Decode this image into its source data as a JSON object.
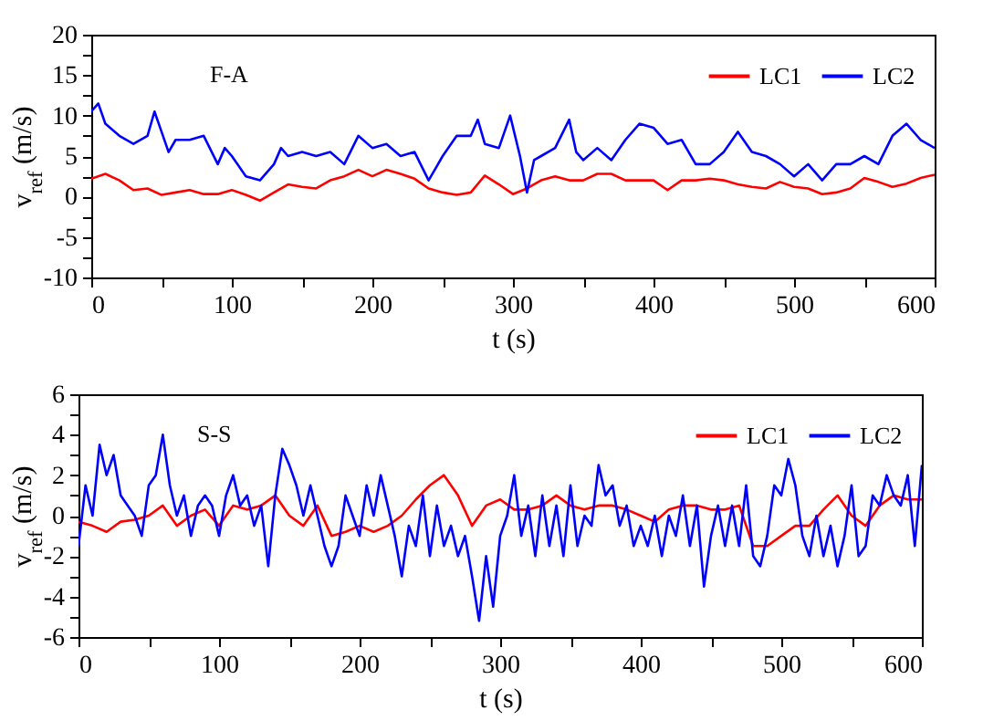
{
  "chart_data": [
    {
      "type": "line",
      "xlabel": "t (s)",
      "ylabel": "v$_{ref}$ (m/s)",
      "annotations": [
        "F-A"
      ],
      "legend": "top right",
      "xlim": [
        0,
        600
      ],
      "ylim": [
        -10,
        20
      ],
      "xticks": [
        0,
        {
          "value": 50,
          "label": null
        },
        100,
        {
          "value": 150,
          "label": null
        },
        200,
        {
          "value": 250,
          "label": null
        },
        300,
        {
          "value": 350,
          "label": null
        },
        400,
        {
          "value": 450,
          "label": null
        },
        500,
        {
          "value": 550,
          "label": null
        },
        600
      ],
      "yticks": [
        -10,
        {
          "value": -7.5,
          "label": null
        },
        -5,
        {
          "value": -2.5,
          "label": null
        },
        0,
        {
          "value": 2.5,
          "label": null
        },
        5,
        {
          "value": 7.5,
          "label": null
        },
        10,
        {
          "value": 12.5,
          "label": null
        },
        15,
        {
          "value": 17.5,
          "label": null
        },
        20
      ],
      "series": [
        {
          "name": "LC1",
          "color": "#ff0000",
          "x": [
            0,
            10,
            20,
            30,
            40,
            50,
            60,
            70,
            80,
            90,
            100,
            110,
            120,
            130,
            140,
            150,
            160,
            170,
            180,
            190,
            200,
            210,
            220,
            230,
            240,
            250,
            260,
            270,
            280,
            290,
            300,
            310,
            320,
            330,
            340,
            350,
            360,
            370,
            380,
            390,
            400,
            410,
            420,
            430,
            440,
            450,
            460,
            470,
            480,
            490,
            500,
            510,
            520,
            530,
            540,
            550,
            560,
            570,
            580,
            590,
            600
          ],
          "values": [
            2.2,
            2.8,
            2,
            0.8,
            1,
            0.2,
            0.5,
            0.8,
            0.3,
            0.3,
            0.8,
            0.2,
            -0.5,
            0.5,
            1.5,
            1.2,
            1,
            2,
            2.5,
            3.3,
            2.5,
            3.3,
            2.8,
            2.2,
            1,
            0.5,
            0.2,
            0.5,
            2.6,
            1.5,
            0.3,
            1,
            2,
            2.5,
            2,
            2,
            2.8,
            2.8,
            2,
            2,
            2,
            0.8,
            2,
            2,
            2.2,
            2,
            1.5,
            1.2,
            1,
            1.8,
            1.2,
            1,
            0.3,
            0.5,
            1,
            2.3,
            1.8,
            1.2,
            1.6,
            2.3,
            2.7
          ]
        },
        {
          "name": "LC2",
          "color": "#0000ff",
          "x": [
            0,
            5,
            10,
            20,
            30,
            40,
            45,
            50,
            55,
            60,
            70,
            80,
            90,
            95,
            100,
            110,
            120,
            130,
            135,
            140,
            150,
            160,
            170,
            180,
            190,
            200,
            210,
            220,
            230,
            240,
            245,
            250,
            260,
            270,
            275,
            280,
            290,
            298,
            305,
            310,
            315,
            320,
            330,
            340,
            345,
            350,
            360,
            370,
            380,
            390,
            400,
            410,
            420,
            430,
            440,
            450,
            460,
            470,
            480,
            490,
            500,
            510,
            520,
            530,
            540,
            550,
            560,
            570,
            580,
            590,
            600
          ],
          "values": [
            10.5,
            11.5,
            9,
            7.5,
            6.5,
            7.5,
            10.5,
            8,
            5.5,
            7,
            7,
            7.5,
            4,
            6,
            5,
            2.5,
            2,
            4,
            6,
            5,
            5.5,
            5,
            5.5,
            4,
            7.5,
            6,
            6.5,
            5,
            5.5,
            2,
            3.5,
            5,
            7.5,
            7.5,
            9.5,
            6.5,
            6,
            10,
            5,
            0.5,
            4.5,
            5,
            6,
            9.5,
            5.5,
            4.5,
            6,
            4.5,
            7,
            9,
            8.5,
            6.5,
            7,
            4,
            4,
            5.5,
            8,
            5.5,
            5,
            4,
            2.5,
            4,
            2,
            4,
            4,
            5,
            4,
            7.5,
            9,
            7,
            6
          ]
        }
      ]
    },
    {
      "type": "line",
      "xlabel": "t (s)",
      "ylabel": "v$_{ref}$ (m/s)",
      "annotations": [
        "S-S"
      ],
      "legend": "top right",
      "xlim": [
        0,
        600
      ],
      "ylim": [
        -6,
        6
      ],
      "xticks": [
        0,
        {
          "value": 50,
          "label": null
        },
        100,
        {
          "value": 150,
          "label": null
        },
        200,
        {
          "value": 250,
          "label": null
        },
        300,
        {
          "value": 350,
          "label": null
        },
        400,
        {
          "value": 450,
          "label": null
        },
        500,
        {
          "value": 550,
          "label": null
        },
        600
      ],
      "yticks": [
        -6,
        {
          "value": -5,
          "label": null
        },
        -4,
        {
          "value": -3,
          "label": null
        },
        -2,
        {
          "value": -1,
          "label": null
        },
        0,
        {
          "value": 1,
          "label": null
        },
        2,
        {
          "value": 3,
          "label": null
        },
        4,
        {
          "value": 5,
          "label": null
        },
        6
      ],
      "series": [
        {
          "name": "LC1",
          "color": "#ff0000",
          "x": [
            0,
            10,
            20,
            30,
            40,
            50,
            60,
            70,
            80,
            90,
            100,
            110,
            120,
            130,
            140,
            150,
            160,
            170,
            180,
            190,
            200,
            210,
            220,
            230,
            240,
            250,
            260,
            270,
            280,
            290,
            300,
            310,
            320,
            330,
            340,
            350,
            360,
            370,
            380,
            390,
            400,
            410,
            420,
            430,
            440,
            450,
            460,
            470,
            480,
            490,
            500,
            510,
            520,
            530,
            540,
            550,
            560,
            570,
            580,
            590,
            600
          ],
          "values": [
            -0.3,
            -0.5,
            -0.8,
            -0.3,
            -0.2,
            0,
            0.5,
            -0.5,
            0,
            0.3,
            -0.5,
            0.5,
            0.3,
            0.5,
            1,
            0,
            -0.5,
            0.5,
            -1,
            -0.8,
            -0.5,
            -0.8,
            -0.5,
            0,
            0.8,
            1.5,
            2,
            1,
            -0.5,
            0.5,
            0.8,
            0.3,
            0.3,
            0.5,
            1,
            0.5,
            0.3,
            0.5,
            0.5,
            0.3,
            0,
            -0.3,
            0.3,
            0.5,
            0.5,
            0.3,
            0.3,
            0.5,
            -1.5,
            -1.5,
            -1,
            -0.5,
            -0.5,
            0.3,
            1,
            0,
            -0.5,
            0.5,
            1,
            0.8,
            0.8
          ]
        },
        {
          "name": "LC2",
          "color": "#0000ff",
          "x": [
            0,
            5,
            10,
            15,
            20,
            25,
            30,
            35,
            40,
            45,
            50,
            55,
            60,
            65,
            70,
            75,
            80,
            85,
            90,
            95,
            100,
            105,
            110,
            115,
            120,
            125,
            130,
            135,
            140,
            145,
            150,
            155,
            160,
            165,
            170,
            175,
            180,
            185,
            190,
            195,
            200,
            205,
            210,
            215,
            220,
            225,
            230,
            235,
            240,
            245,
            250,
            255,
            260,
            265,
            270,
            275,
            280,
            285,
            290,
            295,
            300,
            305,
            310,
            315,
            320,
            325,
            330,
            335,
            340,
            345,
            350,
            355,
            360,
            365,
            370,
            375,
            380,
            385,
            390,
            395,
            400,
            405,
            410,
            415,
            420,
            425,
            430,
            435,
            440,
            445,
            450,
            455,
            460,
            465,
            470,
            475,
            480,
            485,
            490,
            495,
            500,
            505,
            510,
            515,
            520,
            525,
            530,
            535,
            540,
            545,
            550,
            555,
            560,
            565,
            570,
            575,
            580,
            585,
            590,
            595,
            600
          ],
          "values": [
            -1.5,
            1.5,
            0,
            3.5,
            2,
            3,
            1,
            0.5,
            0,
            -1,
            1.5,
            2,
            4,
            1.5,
            0,
            1,
            -1,
            0.5,
            1,
            0.5,
            -1,
            1,
            2,
            0.5,
            1,
            -0.5,
            0.5,
            -2.5,
            1,
            3.3,
            2.5,
            1.5,
            0,
            1.5,
            0,
            -1.5,
            -2.5,
            -1.5,
            1,
            0,
            -1,
            1.5,
            0,
            2,
            0.5,
            -1,
            -3,
            -0.5,
            -1.5,
            1,
            -2,
            0.5,
            -1.5,
            -0.5,
            -2,
            -1,
            -3,
            -5.2,
            -2,
            -4.5,
            -1,
            0,
            2,
            -1,
            0.5,
            -2,
            1,
            -1.5,
            0.5,
            -2,
            1.5,
            -1.5,
            0,
            -0.5,
            2.5,
            1,
            1.5,
            -0.5,
            0.5,
            -1.5,
            -0.5,
            -1.5,
            0,
            -2,
            0,
            -1,
            1,
            -1.5,
            0.5,
            -3.5,
            -1,
            0.5,
            -1.5,
            0.5,
            -1.5,
            1.5,
            -2,
            -2.5,
            -1,
            1.5,
            1,
            2.8,
            1.5,
            -1,
            -2,
            0,
            -2,
            -0.5,
            -2.5,
            -1,
            1.5,
            -2,
            -1.5,
            1,
            0.5,
            2,
            1,
            0.5,
            2,
            -1.5,
            2.5
          ]
        }
      ]
    }
  ]
}
